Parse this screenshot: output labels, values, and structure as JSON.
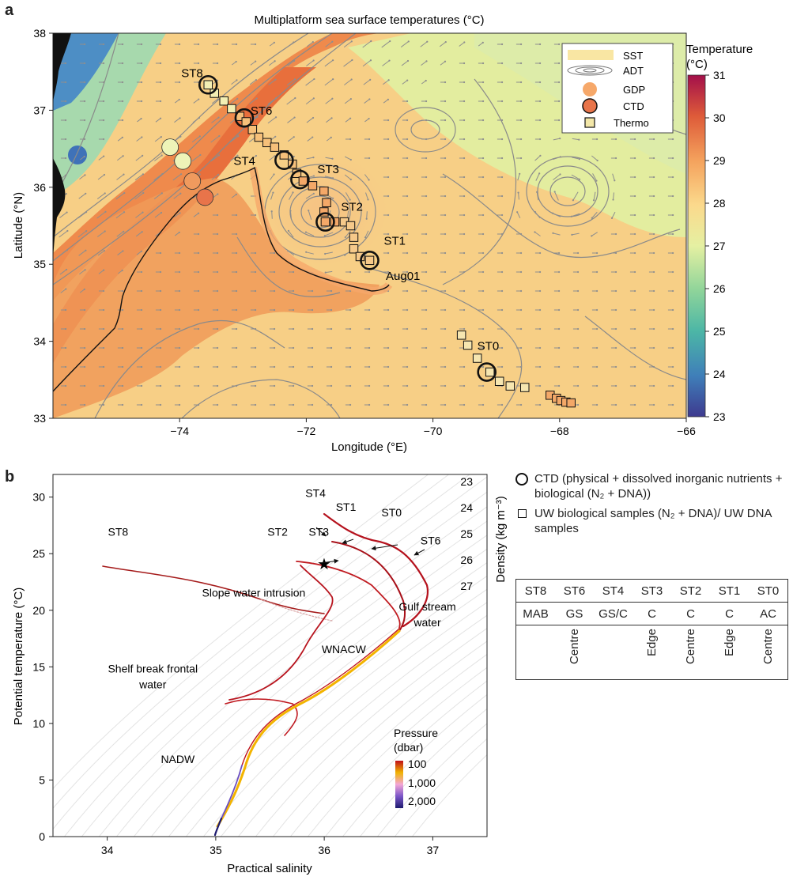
{
  "panels": {
    "a": "a",
    "b": "b"
  },
  "chart_data": [
    {
      "type": "heatmap",
      "title": "Multiplatform sea surface temperatures (°C)",
      "xlabel": "Longitude (°E)",
      "ylabel": "Latitude (°N)",
      "xlim": [
        -76,
        -66
      ],
      "ylim": [
        33,
        38
      ],
      "xticks": [
        -74,
        -72,
        -70,
        -68,
        -66
      ],
      "yticks": [
        33,
        34,
        35,
        36,
        37,
        38
      ],
      "colorbar": {
        "title": "Temperature (°C)",
        "min": 23,
        "max": 31,
        "ticks": [
          23,
          24,
          25,
          26,
          27,
          28,
          29,
          30,
          31
        ]
      },
      "legend": [
        "SST",
        "ADT",
        "GDP",
        "CTD",
        "Thermo"
      ],
      "legend_position": "top-right",
      "ctd_stations": [
        {
          "name": "ST8",
          "lon": -73.55,
          "lat": 37.33
        },
        {
          "name": "ST6",
          "lon": -72.98,
          "lat": 36.9
        },
        {
          "name": "ST4",
          "lon": -72.35,
          "lat": 36.35
        },
        {
          "name": "ST3",
          "lon": -72.1,
          "lat": 36.1
        },
        {
          "name": "ST2",
          "lon": -71.7,
          "lat": 35.55
        },
        {
          "name": "ST1",
          "lon": -71.0,
          "lat": 35.05
        },
        {
          "name": "ST0",
          "lon": -69.15,
          "lat": 33.6
        }
      ],
      "ctd_plain_casts": [
        {
          "lon": -74.15,
          "lat": 36.52,
          "temp": 27.1
        },
        {
          "lon": -73.95,
          "lat": 36.34,
          "temp": 27.1
        },
        {
          "lon": -73.8,
          "lat": 36.08,
          "temp": 29.0
        },
        {
          "lon": -73.6,
          "lat": 35.87,
          "temp": 29.4
        }
      ],
      "drifter_label": "Aug01",
      "thermo_track": [
        [
          -73.55,
          37.33
        ],
        [
          -73.45,
          37.22
        ],
        [
          -73.3,
          37.12
        ],
        [
          -73.18,
          37.02
        ],
        [
          -73.05,
          36.92
        ],
        [
          -72.95,
          36.85
        ],
        [
          -72.85,
          36.75
        ],
        [
          -72.75,
          36.65
        ],
        [
          -72.62,
          36.58
        ],
        [
          -72.5,
          36.52
        ],
        [
          -72.35,
          36.42
        ],
        [
          -72.22,
          36.3
        ],
        [
          -72.15,
          36.18
        ],
        [
          -72.05,
          36.08
        ],
        [
          -71.9,
          36.02
        ],
        [
          -71.72,
          35.95
        ],
        [
          -71.68,
          35.8
        ],
        [
          -71.72,
          35.68
        ],
        [
          -71.7,
          35.55
        ],
        [
          -71.55,
          35.55
        ],
        [
          -71.4,
          35.55
        ],
        [
          -71.3,
          35.5
        ],
        [
          -71.25,
          35.35
        ],
        [
          -71.25,
          35.2
        ],
        [
          -71.15,
          35.1
        ],
        [
          -71.0,
          35.05
        ]
      ],
      "thermo_track_st0": [
        [
          -69.55,
          34.08
        ],
        [
          -69.45,
          33.95
        ],
        [
          -69.3,
          33.78
        ],
        [
          -69.1,
          33.6
        ],
        [
          -68.95,
          33.48
        ],
        [
          -68.78,
          33.42
        ],
        [
          -68.55,
          33.4
        ],
        [
          -68.15,
          33.3
        ],
        [
          -68.05,
          33.26
        ],
        [
          -67.98,
          33.23
        ],
        [
          -67.9,
          33.21
        ],
        [
          -67.82,
          33.2
        ]
      ]
    },
    {
      "type": "scatter",
      "xlabel": "Practical salinity",
      "ylabel": "Potential temperature (°C)",
      "xlim": [
        33.5,
        37.5
      ],
      "ylim": [
        0,
        32
      ],
      "xticks": [
        34,
        35,
        36,
        37
      ],
      "yticks": [
        0,
        5,
        10,
        15,
        20,
        25,
        30
      ],
      "density_label": "Density (kg m⁻³)",
      "density_ticks": [
        "23",
        "24",
        "25",
        "26",
        "27"
      ],
      "pressure_legend": {
        "title": "Pressure (dbar)",
        "ticks": [
          "100",
          "1,000",
          "2,000"
        ]
      },
      "station_labels": [
        {
          "text": "ST8",
          "x": 34.1,
          "y": 26.6
        },
        {
          "text": "ST4",
          "x": 35.92,
          "y": 30.0
        },
        {
          "text": "ST1",
          "x": 36.2,
          "y": 28.8
        },
        {
          "text": "ST0",
          "x": 36.62,
          "y": 28.3
        },
        {
          "text": "ST2",
          "x": 35.57,
          "y": 26.6
        },
        {
          "text": "ST3",
          "x": 35.95,
          "y": 26.6
        },
        {
          "text": "ST6",
          "x": 36.98,
          "y": 25.8
        }
      ],
      "water_masses": [
        {
          "text": "Slope water intrusion",
          "x": 35.35,
          "y": 21.2
        },
        {
          "text": "Gulf stream",
          "x": 36.95,
          "y": 20.0
        },
        {
          "text": "water",
          "x": 36.95,
          "y": 18.6
        },
        {
          "text": "WNACW",
          "x": 36.18,
          "y": 16.2
        },
        {
          "text": "Shelf break frontal",
          "x": 34.42,
          "y": 14.5
        },
        {
          "text": "water",
          "x": 34.42,
          "y": 13.1
        },
        {
          "text": "NADW",
          "x": 34.65,
          "y": 6.5
        }
      ]
    }
  ],
  "legend_b": {
    "ctd_text": "CTD (physical + dissolved inorganic nutrients + biological (N₂ + DNA))",
    "uw_text": "UW biological samples (N₂ + DNA)/ UW DNA samples"
  },
  "station_table": {
    "stations": [
      "ST8",
      "ST6",
      "ST4",
      "ST3",
      "ST2",
      "ST1",
      "ST0"
    ],
    "regions": [
      "MAB",
      "GS",
      "GS/C",
      "C",
      "C",
      "C",
      "AC"
    ],
    "positions": [
      "",
      "Centre",
      "",
      "Edge",
      "Centre",
      "Edge",
      "Centre"
    ]
  },
  "colors": {
    "ctd_track": "#e8744a",
    "gdp": "#f6a86a",
    "thermo": "#f3d58c"
  }
}
